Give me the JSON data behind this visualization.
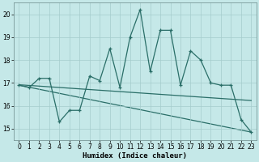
{
  "xlabel": "Humidex (Indice chaleur)",
  "background_color": "#c5e8e8",
  "grid_color": "#a5cccc",
  "line_color": "#2a6e68",
  "line1_x": [
    0,
    1,
    2,
    3,
    4,
    5,
    6,
    7,
    8,
    9,
    10,
    11,
    12,
    13,
    14,
    15,
    16,
    17,
    18,
    19,
    20,
    21,
    22,
    23
  ],
  "line1_y": [
    16.9,
    16.8,
    17.2,
    17.2,
    15.3,
    15.8,
    15.8,
    17.3,
    17.1,
    18.5,
    16.8,
    19.0,
    20.2,
    17.5,
    19.3,
    19.3,
    16.9,
    18.4,
    18.0,
    17.0,
    16.9,
    16.9,
    15.4,
    14.85
  ],
  "line2_x": [
    0,
    1,
    2,
    3,
    4,
    5,
    6,
    7,
    8,
    9,
    10,
    11,
    12,
    13,
    14,
    15,
    16,
    17,
    18,
    19,
    20,
    21,
    22,
    23
  ],
  "line2_y": [
    16.92,
    16.89,
    16.86,
    16.83,
    16.8,
    16.77,
    16.74,
    16.71,
    16.68,
    16.65,
    16.62,
    16.59,
    16.56,
    16.53,
    16.5,
    16.47,
    16.44,
    16.41,
    16.38,
    16.35,
    16.32,
    16.29,
    16.26,
    16.23
  ],
  "line3_x": [
    0,
    23
  ],
  "line3_y": [
    16.9,
    14.85
  ],
  "ylim": [
    14.5,
    20.5
  ],
  "xlim": [
    -0.5,
    23.5
  ],
  "yticks": [
    15,
    16,
    17,
    18,
    19,
    20
  ],
  "xticks": [
    0,
    1,
    2,
    3,
    4,
    5,
    6,
    7,
    8,
    9,
    10,
    11,
    12,
    13,
    14,
    15,
    16,
    17,
    18,
    19,
    20,
    21,
    22,
    23
  ],
  "linewidth": 0.9,
  "tick_fontsize": 5.5,
  "label_fontsize": 6.5,
  "marker_size": 3.0
}
